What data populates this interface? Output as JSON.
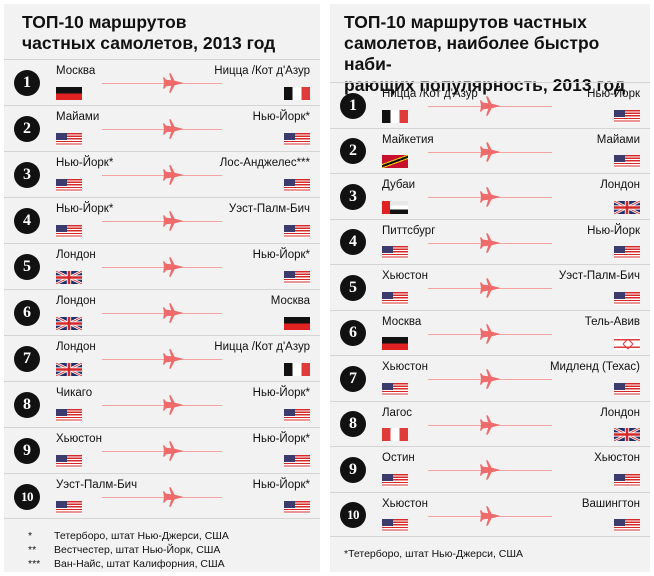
{
  "colors": {
    "panel_bg": "#f2f2f2",
    "accent": "#ef6b6b",
    "route_line": "#f4a3a3",
    "badge": "#111111"
  },
  "left": {
    "title": "ТОП-10 маршрутов\nчастных самолетов, 2013 год",
    "routes": [
      {
        "rank": "1",
        "from": "Москва",
        "from_flag": "ru",
        "to": "Ницца /Кот д'Азур",
        "to_flag": "fr",
        "plane_icon": "airplane-icon"
      },
      {
        "rank": "2",
        "from": "Майами",
        "from_flag": "us",
        "to": "Нью-Йорк*",
        "to_flag": "us",
        "plane_icon": "airplane-icon"
      },
      {
        "rank": "3",
        "from": "Нью-Йорк*",
        "from_flag": "us",
        "to": "Лос-Анджелес***",
        "to_flag": "us",
        "plane_icon": "airplane-icon"
      },
      {
        "rank": "4",
        "from": "Нью-Йорк*",
        "from_flag": "us",
        "to": "Уэст-Палм-Бич",
        "to_flag": "us",
        "plane_icon": "airplane-icon"
      },
      {
        "rank": "5",
        "from": "Лондон",
        "from_flag": "gb",
        "to": "Нью-Йорк*",
        "to_flag": "us",
        "plane_icon": "airplane-icon"
      },
      {
        "rank": "6",
        "from": "Лондон",
        "from_flag": "gb",
        "to": "Москва",
        "to_flag": "ru",
        "plane_icon": "airplane-icon"
      },
      {
        "rank": "7",
        "from": "Лондон",
        "from_flag": "gb",
        "to": "Ницца /Кот д'Азур",
        "to_flag": "fr",
        "plane_icon": "airplane-icon"
      },
      {
        "rank": "8",
        "from": "Чикаго",
        "from_flag": "us",
        "to": "Нью-Йорк*",
        "to_flag": "us",
        "plane_icon": "airplane-icon"
      },
      {
        "rank": "9",
        "from": "Хьюстон",
        "from_flag": "us",
        "to": "Нью-Йорк*",
        "to_flag": "us",
        "plane_icon": "airplane-icon"
      },
      {
        "rank": "10",
        "from": "Уэст-Палм-Бич",
        "from_flag": "us",
        "to": "Нью-Йорк*",
        "to_flag": "us",
        "plane_icon": "airplane-icon"
      }
    ],
    "footnotes": [
      {
        "mark": "*",
        "text": "Тетерборо, штат Нью-Джерси, США"
      },
      {
        "mark": "**",
        "text": "Вестчестер, штат Нью-Йорк, США"
      },
      {
        "mark": "***",
        "text": "Ван-Найс, штат Калифорния, США"
      }
    ]
  },
  "right": {
    "title": "ТОП-10 маршрутов частных\nсамолетов, наиболее быстро наби-\nрающих популярность, 2013 год",
    "routes": [
      {
        "rank": "1",
        "from": "Ницца /Кот д'Азур",
        "from_flag": "fr",
        "to": "Нью-Йорк",
        "to_flag": "us",
        "plane_icon": "airplane-icon"
      },
      {
        "rank": "2",
        "from": "Майкетия",
        "from_flag": "kn",
        "to": "Майами",
        "to_flag": "us",
        "plane_icon": "airplane-icon"
      },
      {
        "rank": "3",
        "from": "Дубаи",
        "from_flag": "ae",
        "to": "Лондон",
        "to_flag": "gb",
        "plane_icon": "airplane-icon"
      },
      {
        "rank": "4",
        "from": "Питтсбург",
        "from_flag": "us",
        "to": "Нью-Йорк",
        "to_flag": "us",
        "plane_icon": "airplane-icon"
      },
      {
        "rank": "5",
        "from": "Хьюстон",
        "from_flag": "us",
        "to": "Уэст-Палм-Бич",
        "to_flag": "us",
        "plane_icon": "airplane-icon"
      },
      {
        "rank": "6",
        "from": "Москва",
        "from_flag": "ru",
        "to": "Тель-Авив",
        "to_flag": "il",
        "plane_icon": "airplane-icon"
      },
      {
        "rank": "7",
        "from": "Хьюстон",
        "from_flag": "us",
        "to": "Мидленд (Техас)",
        "to_flag": "us",
        "plane_icon": "airplane-icon"
      },
      {
        "rank": "8",
        "from": "Лагос",
        "from_flag": "ng",
        "to": "Лондон",
        "to_flag": "gb",
        "plane_icon": "airplane-icon"
      },
      {
        "rank": "9",
        "from": "Остин",
        "from_flag": "us",
        "to": "Хьюстон",
        "to_flag": "us",
        "plane_icon": "airplane-icon"
      },
      {
        "rank": "10",
        "from": "Хьюстон",
        "from_flag": "us",
        "to": "Вашингтон",
        "to_flag": "us",
        "plane_icon": "airplane-icon"
      }
    ],
    "footnotes": [
      {
        "mark": "",
        "text": "*Тетерборо, штат Нью-Джерси, США"
      }
    ]
  }
}
